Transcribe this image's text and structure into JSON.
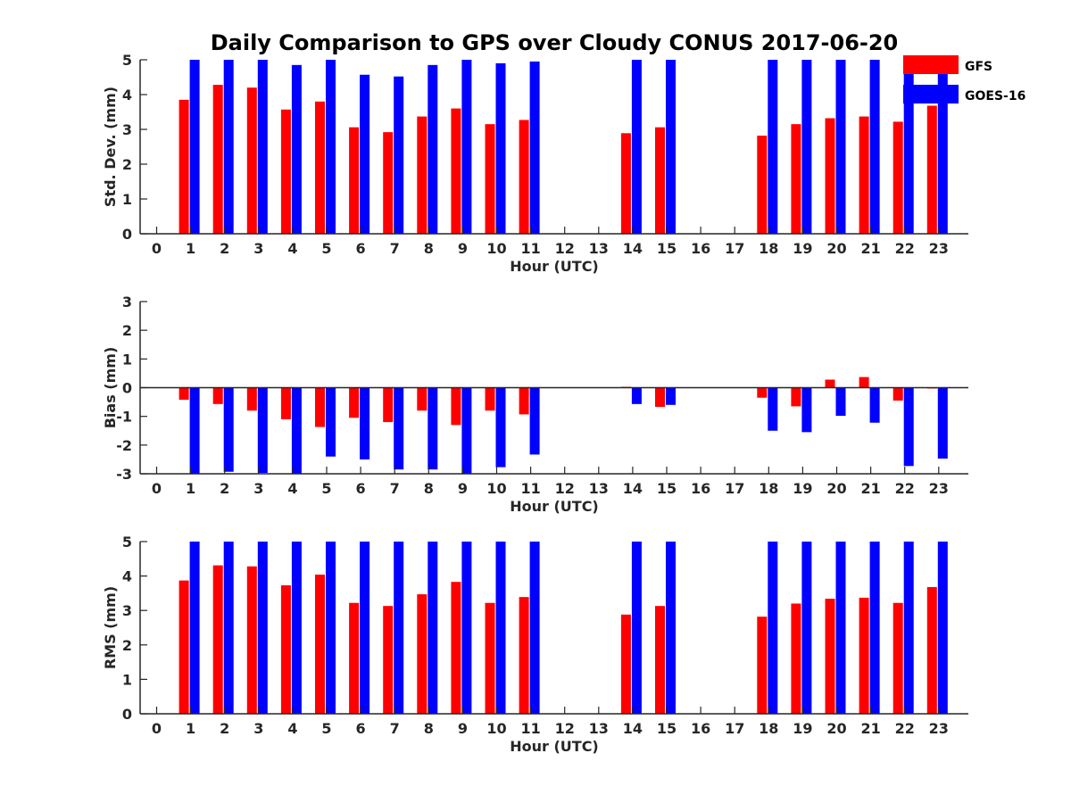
{
  "chart_data": [
    {
      "type": "bar",
      "title": "Daily Comparison to GPS over Cloudy CONUS 2017-06-20",
      "xlabel": "Hour (UTC)",
      "ylabel": "Std. Dev. (mm)",
      "ylim": [
        0,
        5
      ],
      "yticks": [
        0,
        1,
        2,
        3,
        4,
        5
      ],
      "categories": [
        0,
        1,
        2,
        3,
        4,
        5,
        6,
        7,
        8,
        9,
        10,
        11,
        12,
        13,
        14,
        15,
        16,
        17,
        18,
        19,
        20,
        21,
        22,
        23
      ],
      "series": [
        {
          "name": "GFS",
          "values": [
            null,
            3.85,
            4.28,
            4.2,
            3.57,
            3.8,
            3.06,
            2.92,
            3.37,
            3.6,
            3.15,
            3.27,
            null,
            null,
            2.89,
            3.06,
            null,
            null,
            2.82,
            3.15,
            3.32,
            3.37,
            3.22,
            3.68
          ]
        },
        {
          "name": "GOES-16",
          "values": [
            null,
            5.0,
            5.0,
            5.0,
            4.85,
            5.0,
            4.57,
            4.52,
            4.85,
            5.0,
            4.9,
            4.95,
            null,
            null,
            5.0,
            5.0,
            null,
            null,
            5.0,
            5.0,
            5.0,
            5.0,
            5.0,
            5.0
          ]
        }
      ],
      "grid": false
    },
    {
      "type": "bar",
      "title": "",
      "xlabel": "Hour (UTC)",
      "ylabel": "Bias (mm)",
      "ylim": [
        -3,
        3
      ],
      "yticks": [
        -3,
        -2,
        -1,
        0,
        1,
        2,
        3
      ],
      "categories": [
        0,
        1,
        2,
        3,
        4,
        5,
        6,
        7,
        8,
        9,
        10,
        11,
        12,
        13,
        14,
        15,
        16,
        17,
        18,
        19,
        20,
        21,
        22,
        23
      ],
      "series": [
        {
          "name": "GFS",
          "values": [
            null,
            -0.42,
            -0.57,
            -0.8,
            -1.1,
            -1.37,
            -1.05,
            -1.2,
            -0.8,
            -1.3,
            -0.8,
            -0.93,
            null,
            null,
            0.03,
            -0.67,
            null,
            null,
            -0.35,
            -0.65,
            0.28,
            0.37,
            -0.45,
            -0.03
          ]
        },
        {
          "name": "GOES-16",
          "values": [
            null,
            -3.0,
            -2.93,
            -2.97,
            -3.0,
            -2.4,
            -2.5,
            -2.85,
            -2.85,
            -3.0,
            -2.77,
            -2.33,
            null,
            null,
            -0.57,
            -0.6,
            null,
            null,
            -1.5,
            -1.55,
            -0.98,
            -1.22,
            -2.73,
            -2.47
          ]
        }
      ],
      "grid": false
    },
    {
      "type": "bar",
      "title": "",
      "xlabel": "Hour (UTC)",
      "ylabel": "RMS (mm)",
      "ylim": [
        0,
        5
      ],
      "yticks": [
        0,
        1,
        2,
        3,
        4,
        5
      ],
      "categories": [
        0,
        1,
        2,
        3,
        4,
        5,
        6,
        7,
        8,
        9,
        10,
        11,
        12,
        13,
        14,
        15,
        16,
        17,
        18,
        19,
        20,
        21,
        22,
        23
      ],
      "series": [
        {
          "name": "GFS",
          "values": [
            null,
            3.87,
            4.31,
            4.28,
            3.73,
            4.04,
            3.22,
            3.13,
            3.47,
            3.83,
            3.22,
            3.39,
            null,
            null,
            2.88,
            3.13,
            null,
            null,
            2.82,
            3.2,
            3.34,
            3.37,
            3.22,
            3.68
          ]
        },
        {
          "name": "GOES-16",
          "values": [
            null,
            5.0,
            5.0,
            5.0,
            5.0,
            5.0,
            5.0,
            5.0,
            5.0,
            5.0,
            5.0,
            5.0,
            null,
            null,
            5.0,
            5.0,
            null,
            null,
            5.0,
            5.0,
            5.0,
            5.0,
            5.0,
            5.0
          ]
        }
      ],
      "grid": false
    }
  ],
  "legend": {
    "placement": "top-right",
    "entries": [
      {
        "label": "GFS",
        "color": "#ff0000"
      },
      {
        "label": "GOES-16",
        "color": "#0000ff"
      }
    ]
  },
  "colors": {
    "GFS": "#ff0000",
    "GOES-16": "#0000ff",
    "axis": "#262626"
  }
}
